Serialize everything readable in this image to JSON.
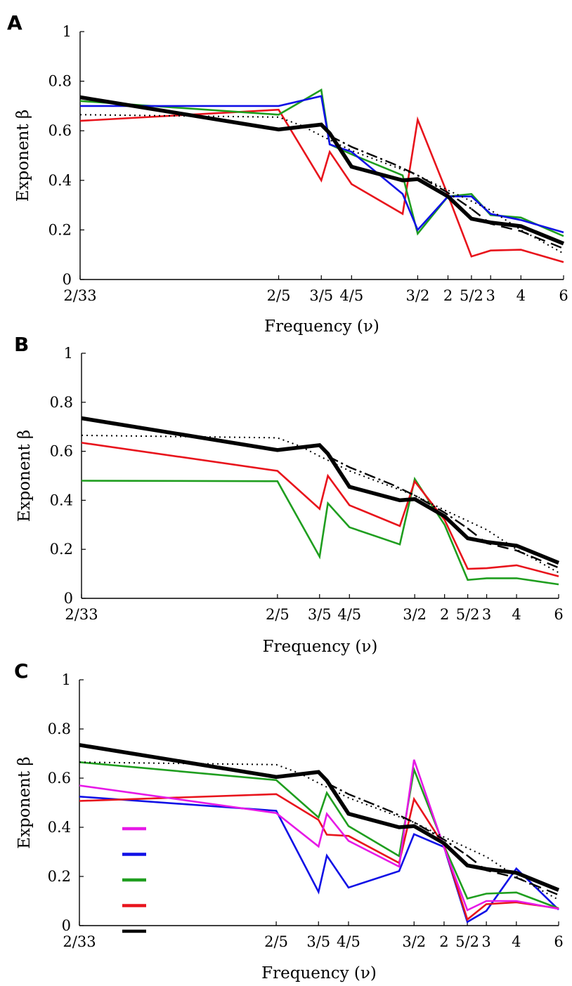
{
  "chart_data": [
    {
      "type": "line",
      "panel": "A",
      "xlabel": "Frequency (ν)",
      "ylabel": "Exponent β",
      "ylim": [
        0,
        1
      ],
      "yticks": [
        "0",
        "0.2",
        "0.4",
        "0.6",
        "0.8",
        "1"
      ],
      "xscale": "log",
      "xticks": [
        {
          "label": "2/33",
          "value": 0.0606
        },
        {
          "label": "2/5",
          "value": 0.4
        },
        {
          "label": "3/5",
          "value": 0.6
        },
        {
          "label": "4/5",
          "value": 0.8
        },
        {
          "label": "3/2",
          "value": 1.5
        },
        {
          "label": "2",
          "value": 2
        },
        {
          "label": "5/2",
          "value": 2.5
        },
        {
          "label": "3",
          "value": 3
        },
        {
          "label": "4",
          "value": 4
        },
        {
          "label": "6",
          "value": 6
        }
      ],
      "legend": "none",
      "series": [
        {
          "color": "#e8141c",
          "width": 2.6,
          "dash": "",
          "x": [
            0.0606,
            0.4,
            0.6,
            0.65,
            0.8,
            1.3,
            1.5,
            2,
            2.5,
            3,
            4,
            6
          ],
          "y": [
            0.64,
            0.685,
            0.4,
            0.515,
            0.385,
            0.265,
            0.645,
            0.34,
            0.093,
            0.117,
            0.12,
            0.07
          ]
        },
        {
          "color": "#1f9e1f",
          "width": 2.6,
          "dash": "",
          "x": [
            0.0606,
            0.4,
            0.6,
            0.65,
            0.8,
            1.3,
            1.5,
            2,
            2.5,
            3,
            4,
            6
          ],
          "y": [
            0.72,
            0.665,
            0.765,
            0.545,
            0.505,
            0.42,
            0.185,
            0.335,
            0.345,
            0.26,
            0.25,
            0.175
          ]
        },
        {
          "color": "#1010e6",
          "width": 2.6,
          "dash": "",
          "x": [
            0.0606,
            0.4,
            0.6,
            0.65,
            0.8,
            1.3,
            1.5,
            2,
            2.5,
            3,
            4,
            6
          ],
          "y": [
            0.7,
            0.7,
            0.74,
            0.545,
            0.515,
            0.345,
            0.2,
            0.335,
            0.335,
            0.265,
            0.24,
            0.19
          ]
        },
        {
          "color": "#000000",
          "width": 2,
          "dash": "2,5",
          "x": [
            0.0606,
            0.4,
            0.5,
            0.6,
            0.8,
            1.5,
            2,
            3,
            4,
            6
          ],
          "y": [
            0.665,
            0.655,
            0.62,
            0.58,
            0.52,
            0.42,
            0.36,
            0.28,
            0.2,
            0.105
          ]
        },
        {
          "color": "#000000",
          "width": 2.4,
          "dash": "16,5,3,5",
          "x": [
            0.65,
            0.8,
            1.2,
            1.5,
            2,
            2.5
          ],
          "y": [
            0.58,
            0.535,
            0.465,
            0.42,
            0.35,
            0.285
          ]
        },
        {
          "color": "#000000",
          "width": 2.4,
          "dash": "16,9",
          "x": [
            2.5,
            3,
            4,
            6
          ],
          "y": [
            0.285,
            0.225,
            0.195,
            0.125
          ]
        },
        {
          "color": "#000000",
          "width": 5.5,
          "dash": "",
          "x": [
            0.0606,
            0.4,
            0.6,
            0.65,
            0.8,
            1.3,
            1.5,
            2,
            2.5,
            3,
            4,
            6
          ],
          "y": [
            0.735,
            0.605,
            0.625,
            0.59,
            0.455,
            0.4,
            0.405,
            0.335,
            0.245,
            0.23,
            0.215,
            0.145
          ]
        }
      ]
    },
    {
      "type": "line",
      "panel": "B",
      "xlabel": "Frequency (ν)",
      "ylabel": "Exponent β",
      "ylim": [
        0,
        1
      ],
      "yticks": [
        "0",
        "0.2",
        "0.4",
        "0.6",
        "0.8",
        "1"
      ],
      "xscale": "log",
      "xticks": [
        {
          "label": "2/33",
          "value": 0.0606
        },
        {
          "label": "2/5",
          "value": 0.4
        },
        {
          "label": "3/5",
          "value": 0.6
        },
        {
          "label": "4/5",
          "value": 0.8
        },
        {
          "label": "3/2",
          "value": 1.5
        },
        {
          "label": "2",
          "value": 2
        },
        {
          "label": "5/2",
          "value": 2.5
        },
        {
          "label": "3",
          "value": 3
        },
        {
          "label": "4",
          "value": 4
        },
        {
          "label": "6",
          "value": 6
        }
      ],
      "legend": "none",
      "series": [
        {
          "color": "#1f9e1f",
          "width": 2.6,
          "dash": "",
          "x": [
            0.0606,
            0.4,
            0.6,
            0.65,
            0.8,
            1.3,
            1.5,
            2,
            2.5,
            3,
            4,
            6
          ],
          "y": [
            0.48,
            0.478,
            0.17,
            0.388,
            0.29,
            0.22,
            0.487,
            0.3,
            0.075,
            0.082,
            0.082,
            0.057
          ]
        },
        {
          "color": "#e8141c",
          "width": 2.6,
          "dash": "",
          "x": [
            0.0606,
            0.4,
            0.6,
            0.65,
            0.8,
            1.3,
            1.5,
            2,
            2.5,
            3,
            4,
            6
          ],
          "y": [
            0.635,
            0.52,
            0.365,
            0.5,
            0.38,
            0.295,
            0.477,
            0.32,
            0.12,
            0.123,
            0.135,
            0.09
          ]
        },
        {
          "color": "#000000",
          "width": 2,
          "dash": "2,5",
          "x": [
            0.0606,
            0.4,
            0.5,
            0.6,
            0.8,
            1.5,
            2,
            3,
            4,
            6
          ],
          "y": [
            0.665,
            0.655,
            0.62,
            0.58,
            0.52,
            0.42,
            0.36,
            0.28,
            0.2,
            0.105
          ]
        },
        {
          "color": "#000000",
          "width": 2.4,
          "dash": "16,5,3,5",
          "x": [
            0.65,
            0.8,
            1.2,
            1.5,
            2,
            2.5
          ],
          "y": [
            0.58,
            0.535,
            0.465,
            0.42,
            0.35,
            0.285
          ]
        },
        {
          "color": "#000000",
          "width": 2.4,
          "dash": "16,9",
          "x": [
            2.5,
            3,
            4,
            6
          ],
          "y": [
            0.285,
            0.225,
            0.195,
            0.125
          ]
        },
        {
          "color": "#000000",
          "width": 5.5,
          "dash": "",
          "x": [
            0.0606,
            0.4,
            0.6,
            0.65,
            0.8,
            1.3,
            1.5,
            2,
            2.5,
            3,
            4,
            6
          ],
          "y": [
            0.735,
            0.605,
            0.625,
            0.59,
            0.455,
            0.4,
            0.405,
            0.335,
            0.245,
            0.23,
            0.215,
            0.145
          ]
        }
      ]
    },
    {
      "type": "line",
      "panel": "C",
      "xlabel": "Frequency (ν)",
      "ylabel": "Exponent β",
      "ylim": [
        0,
        1
      ],
      "yticks": [
        "0",
        "0.2",
        "0.4",
        "0.6",
        "0.8",
        "1"
      ],
      "xscale": "log",
      "xticks": [
        {
          "label": "2/33",
          "value": 0.0606
        },
        {
          "label": "2/5",
          "value": 0.4
        },
        {
          "label": "3/5",
          "value": 0.6
        },
        {
          "label": "4/5",
          "value": 0.8
        },
        {
          "label": "3/2",
          "value": 1.5
        },
        {
          "label": "2",
          "value": 2
        },
        {
          "label": "5/2",
          "value": 2.5
        },
        {
          "label": "3",
          "value": 3
        },
        {
          "label": "4",
          "value": 4
        },
        {
          "label": "6",
          "value": 6
        }
      ],
      "legend": "lower-left",
      "legend_swatches": [
        {
          "color": "#e619e6"
        },
        {
          "color": "#1010e6"
        },
        {
          "color": "#1f9e1f"
        },
        {
          "color": "#e8141c"
        },
        {
          "color": "#000000"
        }
      ],
      "series": [
        {
          "color": "#1010e6",
          "width": 2.6,
          "dash": "",
          "x": [
            0.0606,
            0.4,
            0.6,
            0.65,
            0.8,
            1.3,
            1.5,
            2,
            2.5,
            3,
            4,
            6
          ],
          "y": [
            0.525,
            0.467,
            0.137,
            0.285,
            0.155,
            0.222,
            0.372,
            0.32,
            0.015,
            0.06,
            0.232,
            0.065
          ]
        },
        {
          "color": "#1f9e1f",
          "width": 2.6,
          "dash": "",
          "x": [
            0.0606,
            0.4,
            0.6,
            0.65,
            0.8,
            1.3,
            1.5,
            2,
            2.5,
            3,
            4,
            6
          ],
          "y": [
            0.665,
            0.592,
            0.44,
            0.54,
            0.405,
            0.283,
            0.635,
            0.325,
            0.11,
            0.13,
            0.135,
            0.07
          ]
        },
        {
          "color": "#e8141c",
          "width": 2.6,
          "dash": "",
          "x": [
            0.0606,
            0.4,
            0.6,
            0.65,
            0.8,
            1.3,
            1.5,
            2,
            2.5,
            3,
            4,
            6
          ],
          "y": [
            0.507,
            0.535,
            0.43,
            0.37,
            0.365,
            0.255,
            0.515,
            0.325,
            0.025,
            0.087,
            0.095,
            0.07
          ]
        },
        {
          "color": "#e619e6",
          "width": 2.6,
          "dash": "",
          "x": [
            0.0606,
            0.4,
            0.6,
            0.65,
            0.8,
            1.3,
            1.5,
            2,
            2.5,
            3,
            4,
            6
          ],
          "y": [
            0.57,
            0.458,
            0.322,
            0.455,
            0.345,
            0.24,
            0.675,
            0.318,
            0.063,
            0.1,
            0.1,
            0.068
          ]
        },
        {
          "color": "#000000",
          "width": 2,
          "dash": "2,5",
          "x": [
            0.0606,
            0.4,
            0.5,
            0.6,
            0.8,
            1.5,
            2,
            3,
            4,
            6
          ],
          "y": [
            0.665,
            0.655,
            0.62,
            0.58,
            0.52,
            0.42,
            0.36,
            0.28,
            0.2,
            0.105
          ]
        },
        {
          "color": "#000000",
          "width": 2.4,
          "dash": "16,5,3,5",
          "x": [
            0.65,
            0.8,
            1.2,
            1.5,
            2,
            2.5
          ],
          "y": [
            0.58,
            0.535,
            0.465,
            0.42,
            0.35,
            0.285
          ]
        },
        {
          "color": "#000000",
          "width": 2.4,
          "dash": "16,9",
          "x": [
            2.5,
            3,
            4,
            6
          ],
          "y": [
            0.285,
            0.225,
            0.195,
            0.125
          ]
        },
        {
          "color": "#000000",
          "width": 5.5,
          "dash": "",
          "x": [
            0.0606,
            0.4,
            0.6,
            0.65,
            0.8,
            1.3,
            1.5,
            2,
            2.5,
            3,
            4,
            6
          ],
          "y": [
            0.735,
            0.605,
            0.625,
            0.59,
            0.455,
            0.4,
            0.405,
            0.335,
            0.245,
            0.23,
            0.215,
            0.145
          ]
        }
      ]
    }
  ]
}
